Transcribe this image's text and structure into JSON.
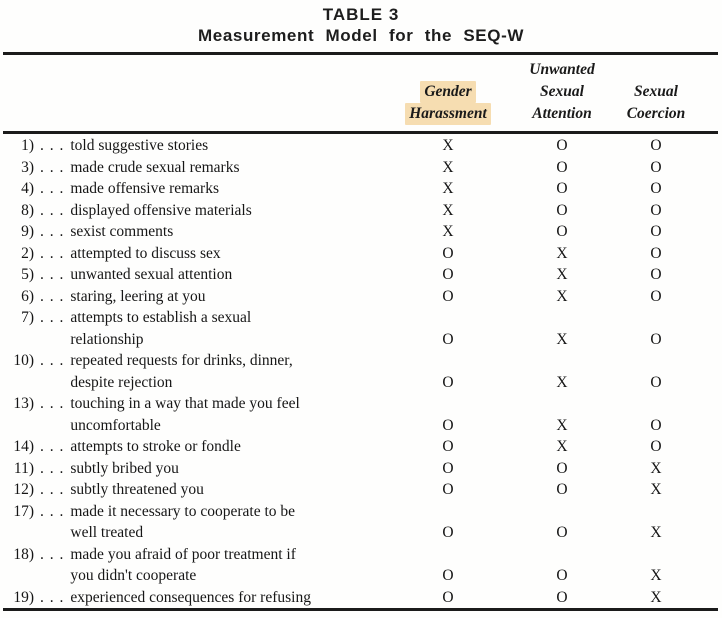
{
  "title": {
    "line1": "TABLE 3",
    "line2": "Measurement Model for the SEQ-W"
  },
  "colors": {
    "highlight": "#f6ddb1",
    "rule": "#1b1b1b",
    "text": "#161616"
  },
  "table": {
    "dots": ". . .",
    "headers": [
      {
        "name": "Gender Harassment",
        "lines": [
          "Gender",
          "Harassment"
        ],
        "highlighted": true
      },
      {
        "name": "Unwanted Sexual Attention",
        "lines": [
          "Unwanted",
          "Sexual",
          "Attention"
        ],
        "highlighted": false
      },
      {
        "name": "Sexual Coercion",
        "lines": [
          "Sexual",
          "Coercion"
        ],
        "highlighted": false
      }
    ],
    "rows": [
      {
        "num": "1)",
        "label": "told suggestive stories",
        "marks": [
          "X",
          "O",
          "O"
        ]
      },
      {
        "num": "3)",
        "label": "made crude sexual remarks",
        "marks": [
          "X",
          "O",
          "O"
        ]
      },
      {
        "num": "4)",
        "label": "made offensive remarks",
        "marks": [
          "X",
          "O",
          "O"
        ]
      },
      {
        "num": "8)",
        "label": "displayed offensive materials",
        "marks": [
          "X",
          "O",
          "O"
        ]
      },
      {
        "num": "9)",
        "label": "sexist comments",
        "marks": [
          "X",
          "O",
          "O"
        ]
      },
      {
        "num": "2)",
        "label": "attempted to discuss sex",
        "marks": [
          "O",
          "X",
          "O"
        ]
      },
      {
        "num": "5)",
        "label": "unwanted sexual attention",
        "marks": [
          "O",
          "X",
          "O"
        ]
      },
      {
        "num": "6)",
        "label": "staring, leering at you",
        "marks": [
          "O",
          "X",
          "O"
        ]
      },
      {
        "num": "7)",
        "label": "attempts to establish a sexual",
        "label2": "relationship",
        "marks": [
          "O",
          "X",
          "O"
        ]
      },
      {
        "num": "10)",
        "label": "repeated requests for drinks, dinner,",
        "label2": "despite rejection",
        "marks": [
          "O",
          "X",
          "O"
        ]
      },
      {
        "num": "13)",
        "label": "touching in a way that made you feel",
        "label2": "uncomfortable",
        "marks": [
          "O",
          "X",
          "O"
        ]
      },
      {
        "num": "14)",
        "label": "attempts to stroke or fondle",
        "marks": [
          "O",
          "X",
          "O"
        ]
      },
      {
        "num": "11)",
        "label": "subtly bribed you",
        "marks": [
          "O",
          "O",
          "X"
        ]
      },
      {
        "num": "12)",
        "label": "subtly threatened you",
        "marks": [
          "O",
          "O",
          "X"
        ]
      },
      {
        "num": "17)",
        "label": "made it necessary to cooperate to be",
        "label2": "well treated",
        "marks": [
          "O",
          "O",
          "X"
        ]
      },
      {
        "num": "18)",
        "label": "made you afraid of poor treatment if",
        "label2": "you didn't cooperate",
        "marks": [
          "O",
          "O",
          "X"
        ]
      },
      {
        "num": "19)",
        "label": "experienced consequences for refusing",
        "marks": [
          "O",
          "O",
          "X"
        ]
      }
    ]
  }
}
